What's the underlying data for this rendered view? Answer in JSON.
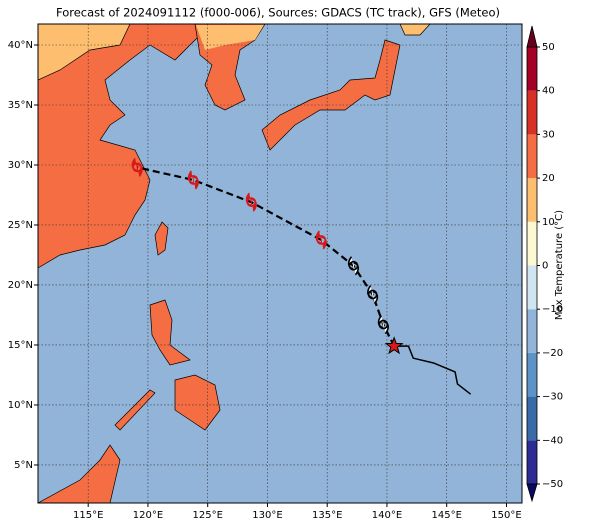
{
  "chart_data": {
    "type": "map",
    "title": "Forecast of 2024091112 (f000-006), Sources: GDACS (TC track), GFS (Meteo)",
    "xlim": [
      110.8,
      151.3
    ],
    "ylim": [
      1.83,
      41.75
    ],
    "xticks": [
      {
        "value": 115,
        "label": "115°E"
      },
      {
        "value": 120,
        "label": "120°E"
      },
      {
        "value": 125,
        "label": "125°E"
      },
      {
        "value": 130,
        "label": "130°E"
      },
      {
        "value": 135,
        "label": "135°E"
      },
      {
        "value": 140,
        "label": "140°E"
      },
      {
        "value": 145,
        "label": "145°E"
      },
      {
        "value": 150,
        "label": "150°E"
      }
    ],
    "yticks": [
      {
        "value": 5,
        "label": "5°N"
      },
      {
        "value": 10,
        "label": "10°N"
      },
      {
        "value": 15,
        "label": "15°N"
      },
      {
        "value": 20,
        "label": "20°N"
      },
      {
        "value": 25,
        "label": "25°N"
      },
      {
        "value": 30,
        "label": "30°N"
      },
      {
        "value": 35,
        "label": "35°N"
      },
      {
        "value": 40,
        "label": "40°N"
      }
    ],
    "grid": true,
    "ocean_color": "#92b4d8",
    "track": {
      "color": "#000000",
      "lon": [
        140.6,
        141.8,
        142.2,
        143.9,
        145.7,
        145.9,
        147.0
      ],
      "lat": [
        14.9,
        14.9,
        13.9,
        13.5,
        12.75,
        11.75,
        10.9
      ]
    },
    "forecast": {
      "lon": [
        140.6,
        139.7,
        138.8,
        137.2,
        134.5,
        128.65,
        123.8,
        119.1
      ],
      "lat": [
        14.9,
        16.7,
        19.2,
        21.6,
        23.75,
        26.9,
        28.75,
        29.8
      ],
      "colors": [
        "#d7191c",
        "#000000",
        "#000000",
        "#000000",
        "#d7191c",
        "#d7191c",
        "#d7191c",
        "#d7191c"
      ]
    },
    "colorbar": {
      "label": "Max Temperature (°C)",
      "levels": [
        -50,
        -40,
        -30,
        -20,
        -10,
        0,
        10,
        20,
        30,
        40,
        50
      ],
      "ticks": [
        {
          "value": -50,
          "label": "−50"
        },
        {
          "value": -40,
          "label": "−40"
        },
        {
          "value": -30,
          "label": "−30"
        },
        {
          "value": -20,
          "label": "−20"
        },
        {
          "value": -10,
          "label": "−10"
        },
        0,
        10,
        20,
        30,
        40,
        50
      ],
      "colors": [
        "#2c2c94",
        "#3b6aa8",
        "#5d93c6",
        "#92b4d8",
        "#cfe6f0",
        "#fbf8d2",
        "#fdbf6f",
        "#f46d43",
        "#d73027",
        "#a50026"
      ],
      "under_color": "#0a0a60",
      "over_color": "#6a0020"
    }
  }
}
